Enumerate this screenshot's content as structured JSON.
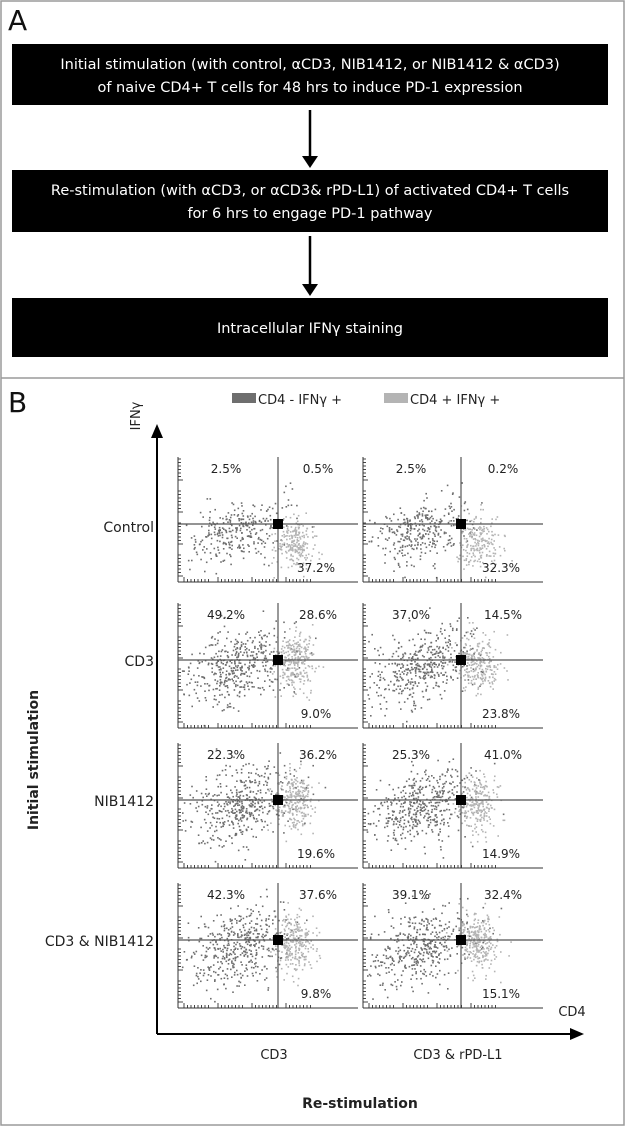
{
  "panel_a": {
    "letter": "A",
    "steps": [
      {
        "lines": [
          "Initial stimulation (with control, αCD3, NIB1412, or NIB1412 & αCD3)",
          "of naive CD4+ T  cells for 48 hrs to induce PD-1 expression"
        ]
      },
      {
        "lines": [
          "Re-stimulation (with αCD3, or αCD3& rPD-L1) of activated CD4+ T cells",
          "for 6 hrs to engage PD-1 pathway"
        ]
      },
      {
        "lines": [
          "Intracellular IFNγ staining"
        ]
      }
    ]
  },
  "panel_b": {
    "letter": "B",
    "y_axis_label": "IFNγ",
    "x_axis_label": "CD4",
    "row_axis_title": "Initial stimulation",
    "col_axis_title": "Re-stimulation",
    "legend": [
      {
        "label": "CD4 -  IFNγ +",
        "color": "#6e6e6e"
      },
      {
        "label": "CD4 +  IFNγ +",
        "color": "#b4b4b4"
      }
    ],
    "columns": [
      "CD3",
      "CD3 & rPD-L1"
    ],
    "rows": [
      {
        "label": "Control",
        "plots": [
          {
            "ul": "2.5%",
            "ur": "0.5%",
            "lr": "37.2%"
          },
          {
            "ul": "2.5%",
            "ur": "0.2%",
            "lr": "32.3%"
          }
        ]
      },
      {
        "label": "CD3",
        "plots": [
          {
            "ul": "49.2%",
            "ur": "28.6%",
            "lr": "9.0%"
          },
          {
            "ul": "37.0%",
            "ur": "14.5%",
            "lr": "23.8%"
          }
        ]
      },
      {
        "label": "NIB1412",
        "plots": [
          {
            "ul": "22.3%",
            "ur": "36.2%",
            "lr": "19.6%"
          },
          {
            "ul": "25.3%",
            "ur": "41.0%",
            "lr": "14.9%"
          }
        ]
      },
      {
        "label": "CD3 & NIB1412",
        "plots": [
          {
            "ul": "42.3%",
            "ur": "37.6%",
            "lr": "9.8%"
          },
          {
            "ul": "39.1%",
            "ur": "32.4%",
            "lr": "15.1%"
          }
        ]
      }
    ]
  }
}
